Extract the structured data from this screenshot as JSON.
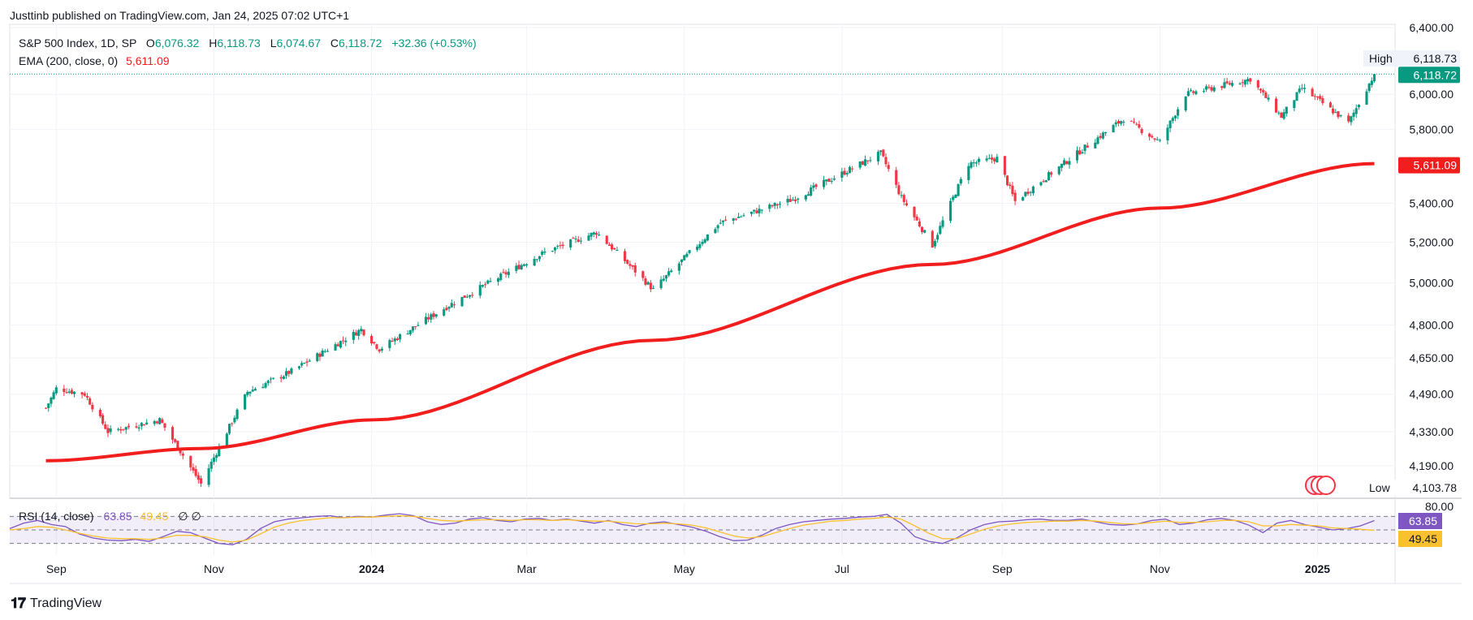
{
  "header": {
    "publisher": "Justtinb published on TradingView.com, Jan 24, 2025 07:02 UTC+1"
  },
  "legend": {
    "symbol": "S&P 500 Index, 1D, SP",
    "o_label": "O",
    "o_value": "6,076.32",
    "h_label": "H",
    "h_value": "6,118.73",
    "l_label": "L",
    "l_value": "6,074.67",
    "c_label": "C",
    "c_value": "6,118.72",
    "change": "+32.36 (+0.53%)",
    "ema_label": "EMA (200, close, 0)",
    "ema_value": "5,611.09",
    "rsi_label": "RSI (14, close)",
    "rsi_value": "63.85",
    "rsi_ma_value": "49.45",
    "rsi_extra": "∅  ∅"
  },
  "footer": {
    "brand": "TradingView"
  },
  "colors": {
    "up": "#089981",
    "down": "#f23645",
    "ema": "#f21d1d",
    "rsi": "#7e57c2",
    "rsi_ma": "#fbc02d",
    "grid": "#f0f3fa"
  },
  "chart_data": [
    {
      "type": "candlestick",
      "title": "S&P 500 Index, 1D, SP",
      "y_ticks": [
        "4,190.00",
        "4,330.00",
        "4,490.00",
        "4,650.00",
        "4,800.00",
        "5,000.00",
        "5,200.00",
        "5,400.00",
        "5,800.00",
        "6,000.00",
        "6,400.00"
      ],
      "x_ticks": [
        "Sep",
        "Nov",
        "2024",
        "Mar",
        "May",
        "Jul",
        "Sep",
        "Nov",
        "2025"
      ],
      "scale": "log",
      "ylim": [
        4060,
        6420
      ],
      "price_labels": {
        "high_label": "High",
        "high": "6,118.73",
        "last": "6,118.72",
        "ema": "5,611.09",
        "low_label": "Low",
        "low": "4,103.78"
      },
      "anchors": [
        {
          "x": "2023-08-28",
          "close": 4430
        },
        {
          "x": "2023-09-01",
          "close": 4515
        },
        {
          "x": "2023-09-12",
          "close": 4490
        },
        {
          "x": "2023-09-21",
          "close": 4330
        },
        {
          "x": "2023-10-11",
          "close": 4380
        },
        {
          "x": "2023-10-27",
          "close": 4117
        },
        {
          "x": "2023-11-14",
          "close": 4500
        },
        {
          "x": "2023-12-01",
          "close": 4590
        },
        {
          "x": "2023-12-28",
          "close": 4780
        },
        {
          "x": "2024-01-04",
          "close": 4690
        },
        {
          "x": "2024-02-01",
          "close": 4900
        },
        {
          "x": "2024-03-08",
          "close": 5150
        },
        {
          "x": "2024-03-28",
          "close": 5250
        },
        {
          "x": "2024-04-19",
          "close": 4967
        },
        {
          "x": "2024-05-15",
          "close": 5300
        },
        {
          "x": "2024-06-12",
          "close": 5420
        },
        {
          "x": "2024-07-16",
          "close": 5667
        },
        {
          "x": "2024-07-24",
          "close": 5430
        },
        {
          "x": "2024-08-05",
          "close": 5186
        },
        {
          "x": "2024-08-19",
          "close": 5610
        },
        {
          "x": "2024-08-30",
          "close": 5640
        },
        {
          "x": "2024-09-06",
          "close": 5410
        },
        {
          "x": "2024-10-18",
          "close": 5860
        },
        {
          "x": "2024-11-01",
          "close": 5730
        },
        {
          "x": "2024-11-11",
          "close": 6000
        },
        {
          "x": "2024-12-06",
          "close": 6090
        },
        {
          "x": "2024-12-18",
          "close": 5872
        },
        {
          "x": "2024-12-26",
          "close": 6037
        },
        {
          "x": "2025-01-13",
          "close": 5836
        },
        {
          "x": "2025-01-23",
          "close": 6118.72
        }
      ],
      "ema200": [
        {
          "x": "2023-08-28",
          "y": 4210
        },
        {
          "x": "2023-10-27",
          "y": 4260
        },
        {
          "x": "2024-01-02",
          "y": 4380
        },
        {
          "x": "2024-04-19",
          "y": 4730
        },
        {
          "x": "2024-08-05",
          "y": 5090
        },
        {
          "x": "2024-11-01",
          "y": 5375
        },
        {
          "x": "2025-01-23",
          "y": 5611.09
        }
      ]
    },
    {
      "type": "line",
      "title": "RSI (14, close)",
      "ylim": [
        20,
        80
      ],
      "y_ticks": [
        "80.00"
      ],
      "bands": [
        70,
        50,
        30
      ],
      "series": [
        {
          "name": "RSI",
          "value_label": "63.85",
          "values": [
            52,
            60,
            64,
            58,
            55,
            44,
            38,
            35,
            34,
            36,
            33,
            40,
            48,
            46,
            38,
            30,
            28,
            36,
            52,
            62,
            66,
            68,
            70,
            71,
            68,
            70,
            69,
            72,
            74,
            71,
            62,
            58,
            60,
            66,
            68,
            64,
            62,
            66,
            67,
            64,
            66,
            63,
            60,
            64,
            58,
            55,
            60,
            62,
            58,
            54,
            48,
            40,
            34,
            35,
            42,
            52,
            58,
            62,
            64,
            66,
            67,
            69,
            70,
            73,
            60,
            40,
            33,
            30,
            38,
            50,
            58,
            62,
            63,
            65,
            66,
            64,
            64,
            66,
            62,
            58,
            57,
            59,
            64,
            66,
            58,
            60,
            65,
            67,
            64,
            57,
            46,
            60,
            64,
            58,
            54,
            50,
            52,
            56,
            63.85
          ]
        },
        {
          "name": "RSI MA",
          "value_label": "49.45",
          "values": [
            50,
            52,
            55,
            54,
            50,
            45,
            41,
            38,
            37,
            37,
            36,
            38,
            42,
            42,
            40,
            35,
            32,
            35,
            44,
            54,
            60,
            64,
            66,
            68,
            68,
            69,
            69,
            70,
            71,
            70,
            67,
            64,
            63,
            64,
            65,
            65,
            64,
            65,
            65,
            64,
            65,
            64,
            63,
            63,
            61,
            59,
            59,
            60,
            59,
            57,
            53,
            47,
            41,
            38,
            40,
            46,
            52,
            57,
            60,
            63,
            64,
            66,
            67,
            69,
            66,
            56,
            45,
            37,
            37,
            44,
            51,
            56,
            59,
            61,
            62,
            63,
            63,
            64,
            63,
            61,
            59,
            59,
            61,
            63,
            61,
            61,
            62,
            64,
            64,
            62,
            56,
            56,
            58,
            57,
            56,
            53,
            52,
            51,
            49.45
          ]
        }
      ]
    }
  ]
}
